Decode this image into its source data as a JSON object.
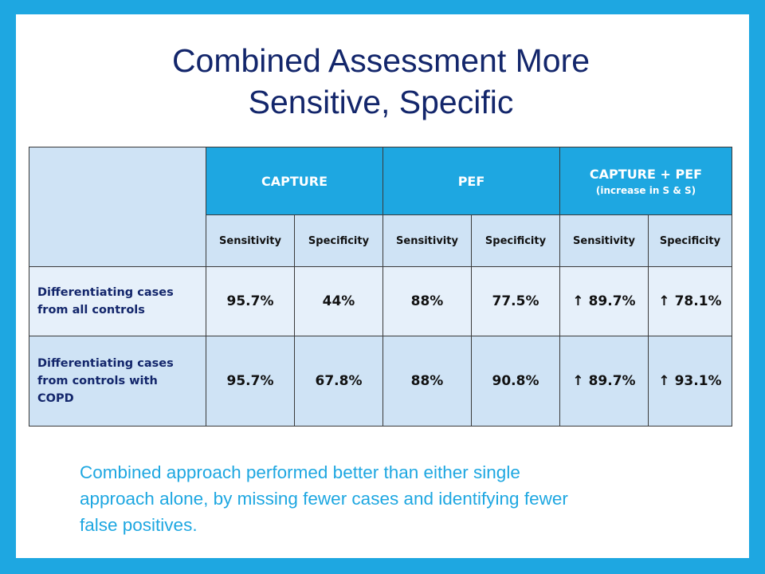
{
  "title": [
    "Combined Assessment More",
    "Sensitive, Specific"
  ],
  "table": {
    "groups": [
      {
        "label": "CAPTURE"
      },
      {
        "label": "PEF"
      },
      {
        "label": "CAPTURE + PEF",
        "note": "(increase in S & S)"
      }
    ],
    "subheaders": [
      "Sensitivity",
      "Specificity",
      "Sensitivity",
      "Specificity",
      "Sensitivity",
      "Specificity"
    ],
    "rows": [
      {
        "label": [
          "Differentiating cases",
          "from all controls"
        ],
        "cells": [
          "95.7%",
          "44%",
          "88%",
          "77.5%",
          "↑ 89.7%",
          "↑ 78.1%"
        ]
      },
      {
        "label": [
          "Differentiating cases",
          "from controls with",
          "COPD"
        ],
        "cells": [
          "95.7%",
          "67.8%",
          "88%",
          "90.8%",
          "↑ 89.7%",
          "↑ 93.1%"
        ]
      }
    ]
  },
  "footer": [
    "Combined approach performed better than either single",
    "approach alone, by missing fewer cases and identifying fewer",
    "false positives."
  ]
}
